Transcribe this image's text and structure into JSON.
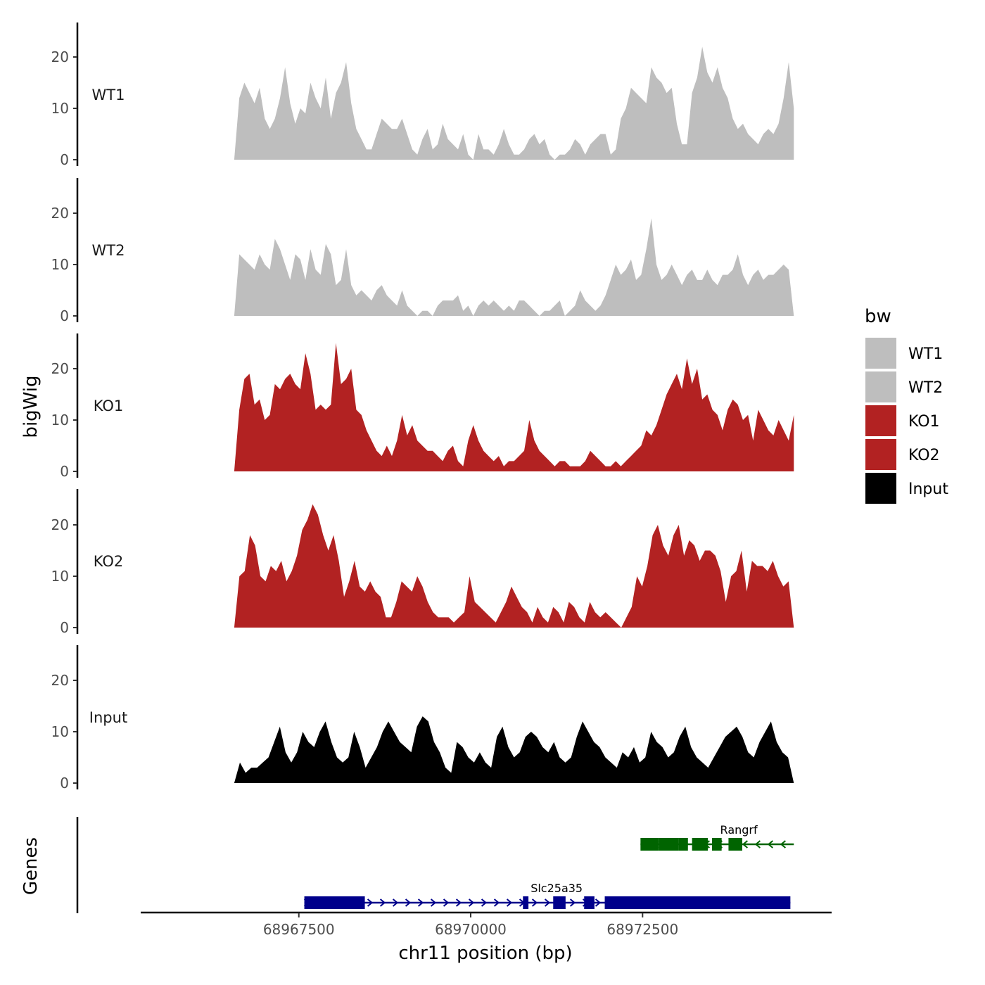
{
  "chart_data": {
    "type": "area",
    "title": "",
    "xlabel": "chr11 position (bp)",
    "ylabel": "bigWig",
    "genes_label": "Genes",
    "xlim": [
      68965200,
      68975250
    ],
    "data_xrange": [
      68966560,
      68974700
    ],
    "x_ticks": [
      68967500,
      68970000,
      68972500
    ],
    "x_tick_labels": [
      "68967500",
      "68970000",
      "68972500"
    ],
    "ylim": [
      0,
      27
    ],
    "y_ticks": [
      0,
      10,
      20
    ],
    "y_tick_labels": [
      "0",
      "10",
      "20"
    ],
    "legend": {
      "title": "bw",
      "position": "right",
      "entries": [
        {
          "label": "WT1",
          "color": "#bebebe"
        },
        {
          "label": "WT2",
          "color": "#bebebe"
        },
        {
          "label": "KO1",
          "color": "#b22222"
        },
        {
          "label": "KO2",
          "color": "#b22222"
        },
        {
          "label": "Input",
          "color": "#000000"
        }
      ]
    },
    "series": [
      {
        "name": "WT1",
        "color": "#bebebe",
        "values": [
          0,
          12,
          15,
          13,
          11,
          14,
          8,
          6,
          8,
          12,
          18,
          11,
          7,
          10,
          9,
          15,
          12,
          10,
          16,
          8,
          13,
          15,
          19,
          11,
          6,
          4,
          2,
          2,
          5,
          8,
          7,
          6,
          6,
          8,
          5,
          2,
          1,
          4,
          6,
          2,
          3,
          7,
          4,
          3,
          2,
          5,
          1,
          0,
          5,
          2,
          2,
          1,
          3,
          6,
          3,
          1,
          1,
          2,
          4,
          5,
          3,
          4,
          1,
          0,
          1,
          1,
          2,
          4,
          3,
          1,
          3,
          4,
          5,
          5,
          1,
          2,
          8,
          10,
          14,
          13,
          12,
          11,
          18,
          16,
          15,
          13,
          14,
          7,
          3,
          3,
          13,
          16,
          22,
          17,
          15,
          18,
          14,
          12,
          8,
          6,
          7,
          5,
          4,
          3,
          5,
          6,
          5,
          7,
          12,
          19,
          10
        ]
      },
      {
        "name": "WT2",
        "color": "#bebebe",
        "values": [
          0,
          12,
          11,
          10,
          9,
          12,
          10,
          9,
          15,
          13,
          10,
          7,
          12,
          11,
          7,
          13,
          9,
          8,
          14,
          12,
          6,
          7,
          13,
          6,
          4,
          5,
          4,
          3,
          5,
          6,
          4,
          3,
          2,
          5,
          2,
          1,
          0,
          1,
          1,
          0,
          2,
          3,
          3,
          3,
          4,
          1,
          2,
          0,
          2,
          3,
          2,
          3,
          2,
          1,
          2,
          1,
          3,
          3,
          2,
          1,
          0,
          1,
          1,
          2,
          3,
          0,
          1,
          2,
          5,
          3,
          2,
          1,
          2,
          4,
          7,
          10,
          8,
          9,
          11,
          7,
          8,
          13,
          19,
          10,
          7,
          8,
          10,
          8,
          6,
          8,
          9,
          7,
          7,
          9,
          7,
          6,
          8,
          8,
          9,
          12,
          8,
          6,
          8,
          9,
          7,
          8,
          8,
          9,
          10,
          9,
          0
        ]
      },
      {
        "name": "KO1",
        "color": "#b22222",
        "values": [
          0,
          12,
          18,
          19,
          13,
          14,
          10,
          11,
          17,
          16,
          18,
          19,
          17,
          16,
          23,
          19,
          12,
          13,
          12,
          13,
          25,
          17,
          18,
          20,
          12,
          11,
          8,
          6,
          4,
          3,
          5,
          3,
          6,
          11,
          7,
          9,
          6,
          5,
          4,
          4,
          3,
          2,
          4,
          5,
          2,
          1,
          6,
          9,
          6,
          4,
          3,
          2,
          3,
          1,
          2,
          2,
          3,
          4,
          10,
          6,
          4,
          3,
          2,
          1,
          2,
          2,
          1,
          1,
          1,
          2,
          4,
          3,
          2,
          1,
          1,
          2,
          1,
          2,
          3,
          4,
          5,
          8,
          7,
          9,
          12,
          15,
          17,
          19,
          16,
          22,
          17,
          20,
          14,
          15,
          12,
          11,
          8,
          12,
          14,
          13,
          10,
          11,
          6,
          12,
          10,
          8,
          7,
          10,
          8,
          6,
          11
        ]
      },
      {
        "name": "KO2",
        "color": "#b22222",
        "values": [
          0,
          10,
          11,
          18,
          16,
          10,
          9,
          12,
          11,
          13,
          9,
          11,
          14,
          19,
          21,
          24,
          22,
          18,
          15,
          18,
          13,
          6,
          9,
          13,
          8,
          7,
          9,
          7,
          6,
          2,
          2,
          5,
          9,
          8,
          7,
          10,
          8,
          5,
          3,
          2,
          2,
          2,
          1,
          2,
          3,
          10,
          5,
          4,
          3,
          2,
          1,
          3,
          5,
          8,
          6,
          4,
          3,
          1,
          4,
          2,
          1,
          4,
          3,
          1,
          5,
          4,
          2,
          1,
          5,
          3,
          2,
          3,
          2,
          1,
          0,
          2,
          4,
          10,
          8,
          12,
          18,
          20,
          16,
          14,
          18,
          20,
          14,
          17,
          16,
          13,
          15,
          15,
          14,
          11,
          5,
          10,
          11,
          15,
          7,
          13,
          12,
          12,
          11,
          13,
          10,
          8,
          9,
          0
        ]
      },
      {
        "name": "Input",
        "color": "#000000",
        "values": [
          0,
          4,
          2,
          3,
          3,
          4,
          5,
          8,
          11,
          6,
          4,
          6,
          10,
          8,
          7,
          10,
          12,
          8,
          5,
          4,
          5,
          10,
          7,
          3,
          5,
          7,
          10,
          12,
          10,
          8,
          7,
          6,
          11,
          13,
          12,
          8,
          6,
          3,
          2,
          8,
          7,
          5,
          4,
          6,
          4,
          3,
          9,
          11,
          7,
          5,
          6,
          9,
          10,
          9,
          7,
          6,
          8,
          5,
          4,
          5,
          9,
          12,
          10,
          8,
          7,
          5,
          4,
          3,
          6,
          5,
          7,
          4,
          5,
          10,
          8,
          7,
          5,
          6,
          9,
          11,
          7,
          5,
          4,
          3,
          5,
          7,
          9,
          10,
          11,
          9,
          6,
          5,
          8,
          10,
          12,
          8,
          6,
          5,
          0
        ]
      }
    ],
    "genes": [
      {
        "name": "Slc25a35",
        "strand": "+",
        "color": "#00008b",
        "start": 68967580,
        "end": 68974650,
        "exons": [
          [
            68967580,
            68968460
          ],
          [
            68970760,
            68970840
          ],
          [
            68971200,
            68971380
          ],
          [
            68971650,
            68971800
          ],
          [
            68971950,
            68974650
          ]
        ]
      },
      {
        "name": "Rangrf",
        "strand": "-",
        "color": "#006400",
        "start": 68972470,
        "end": 68974700,
        "exons": [
          [
            68972470,
            68972740
          ],
          [
            68972740,
            68973020
          ],
          [
            68973020,
            68973160
          ],
          [
            68973220,
            68973450
          ],
          [
            68973510,
            68973650
          ],
          [
            68973750,
            68973950
          ]
        ]
      }
    ]
  }
}
